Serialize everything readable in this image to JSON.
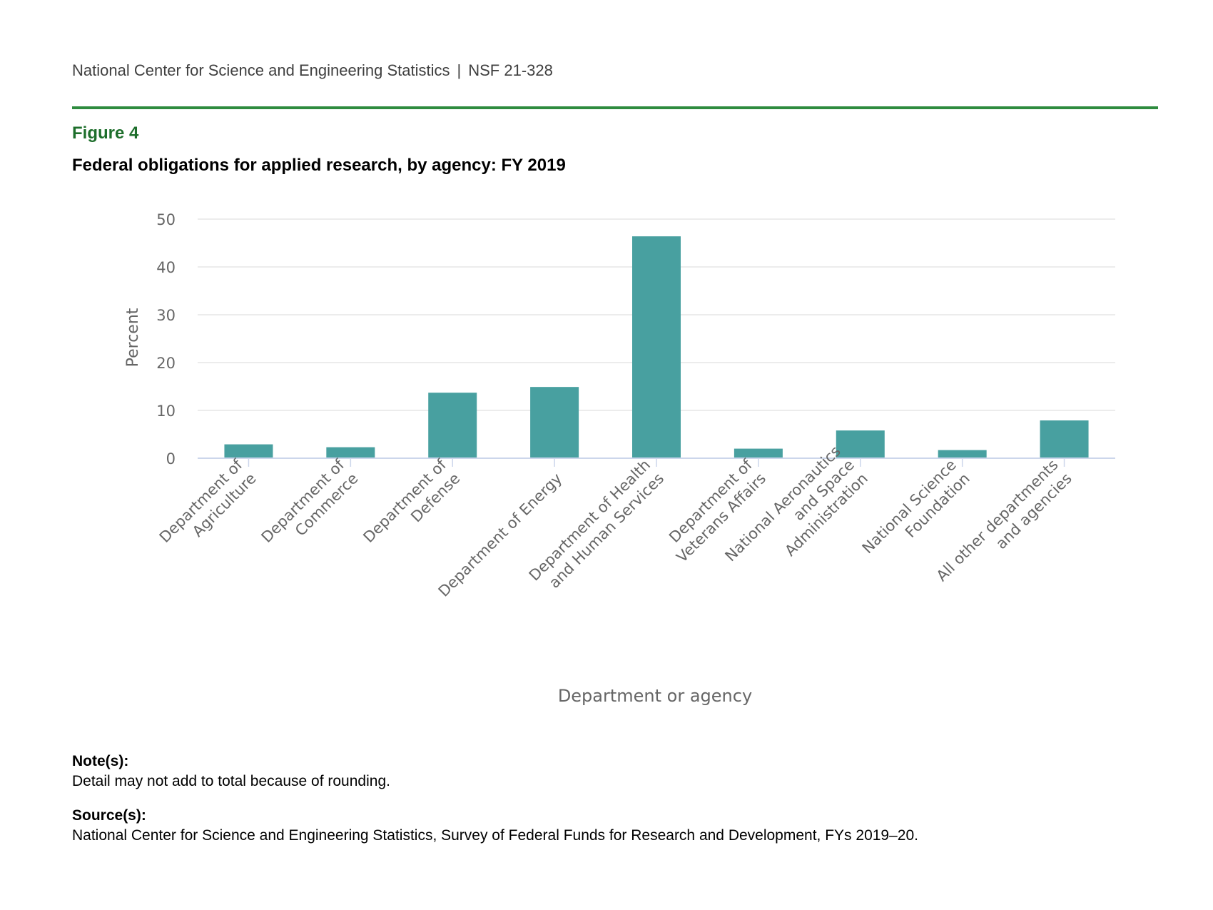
{
  "header": {
    "org": "National Center for Science and Engineering Statistics",
    "separator": "|",
    "report_id": "NSF 21-328"
  },
  "figure": {
    "label": "Figure 4",
    "title": "Federal obligations for applied research, by agency: FY 2019"
  },
  "notes": {
    "heading": "Note(s):",
    "text": "Detail may not add to total because of rounding."
  },
  "sources": {
    "heading": "Source(s):",
    "text": "National Center for Science and Engineering Statistics, Survey of Federal Funds for Research and Development, FYs 2019–20."
  },
  "colors": {
    "bar": "#48a0a0",
    "grid": "#e6e6e6",
    "axis": "#ccd6eb",
    "accent_rule": "#2e8b3e",
    "figure_label": "#1d6e2b"
  },
  "chart_data": {
    "type": "bar",
    "title": "Federal obligations for applied research, by agency: FY 2019",
    "xlabel": "Department or agency",
    "ylabel": "Percent",
    "ylim": [
      0,
      50
    ],
    "yticks": [
      0,
      10,
      20,
      30,
      40,
      50
    ],
    "grid": true,
    "categories": [
      [
        "Department of",
        "Agriculture"
      ],
      [
        "Department of",
        "Commerce"
      ],
      [
        "Department of",
        "Defense"
      ],
      [
        "Department of Energy"
      ],
      [
        "Department of Health",
        "and Human Services"
      ],
      [
        "Department of",
        "Veterans Affairs"
      ],
      [
        "National Aeronautics",
        "and Space",
        "Administration"
      ],
      [
        "National Science",
        "Foundation"
      ],
      [
        "All other departments",
        "and agencies"
      ]
    ],
    "values": [
      2.9,
      2.3,
      13.7,
      14.9,
      46.4,
      2.0,
      5.8,
      1.7,
      7.9
    ]
  }
}
